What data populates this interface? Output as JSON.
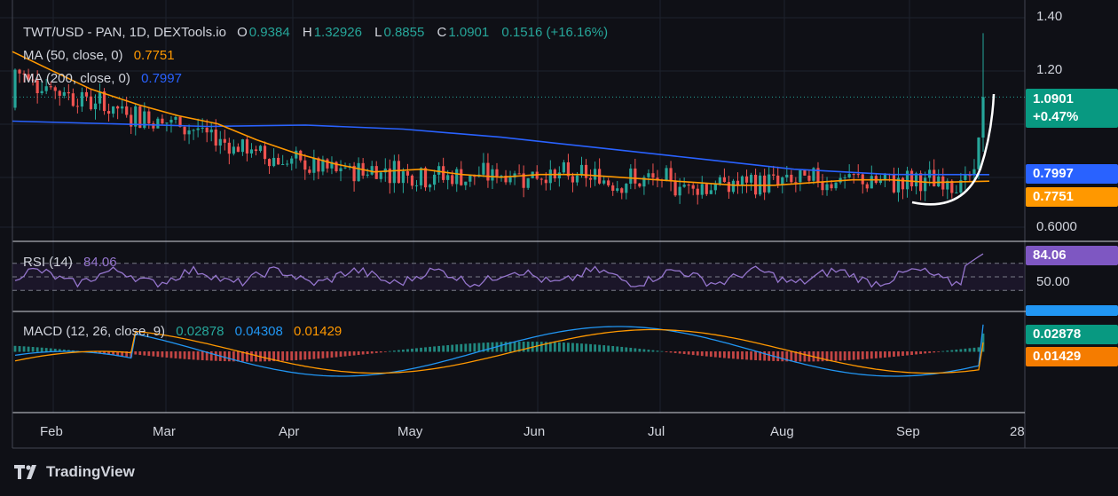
{
  "header": {
    "symbol": "TWT/USD - PAN, 1D, DEXTools.io",
    "open_label": "O",
    "open": "0.9384",
    "high_label": "H",
    "high": "1.32926",
    "low_label": "L",
    "low": "0.8855",
    "close_label": "C",
    "close": "1.0901",
    "change": "0.1516 (+16.16%)"
  },
  "ma50": {
    "label": "MA (50, close, 0)",
    "value": "0.7751",
    "color": "#ff9800"
  },
  "ma200": {
    "label": "MA (200, close, 0)",
    "value": "0.7997",
    "color": "#2962ff"
  },
  "rsi": {
    "label": "RSI (14)",
    "value": "84.06",
    "level": "50.00",
    "color": "#9575cd"
  },
  "macd": {
    "label": "MACD (12, 26, close, 9)",
    "hist": "0.02878",
    "macd": "0.04308",
    "signal": "0.01429"
  },
  "price_tag": {
    "price": "1.0901",
    "pct": "+0.47%"
  },
  "brand": "TradingView",
  "chart_data": {
    "type": "candlestick",
    "title": "TWT/USD - PAN, 1D, DEXTools.io",
    "x_tick_labels": [
      "Feb",
      "Mar",
      "Apr",
      "May",
      "Jun",
      "Jul",
      "Aug",
      "Sep",
      "28"
    ],
    "y_tick_labels": [
      "1.40",
      "1.20",
      "0.6000"
    ],
    "ylim": [
      0.55,
      1.42
    ],
    "ohlc_last": {
      "open": 0.9384,
      "high": 1.32926,
      "low": 0.8855,
      "close": 1.0901
    },
    "ma50_last": 0.7751,
    "ma200_last": 0.7997,
    "ma50_path": [
      [
        0,
        1.26
      ],
      [
        0.04,
        1.19
      ],
      [
        0.08,
        1.12
      ],
      [
        0.13,
        1.06
      ],
      [
        0.17,
        1.02
      ],
      [
        0.21,
        0.99
      ],
      [
        0.25,
        0.93
      ],
      [
        0.29,
        0.88
      ],
      [
        0.33,
        0.84
      ],
      [
        0.37,
        0.81
      ],
      [
        0.42,
        0.82
      ],
      [
        0.46,
        0.8
      ],
      [
        0.5,
        0.79
      ],
      [
        0.54,
        0.8
      ],
      [
        0.58,
        0.8
      ],
      [
        0.62,
        0.79
      ],
      [
        0.66,
        0.78
      ],
      [
        0.7,
        0.77
      ],
      [
        0.74,
        0.76
      ],
      [
        0.78,
        0.76
      ],
      [
        0.82,
        0.77
      ],
      [
        0.86,
        0.78
      ],
      [
        0.9,
        0.78
      ],
      [
        0.94,
        0.77
      ],
      [
        1,
        0.775
      ]
    ],
    "ma200_path": [
      [
        0,
        1.0
      ],
      [
        0.1,
        0.99
      ],
      [
        0.2,
        0.98
      ],
      [
        0.3,
        0.985
      ],
      [
        0.4,
        0.97
      ],
      [
        0.5,
        0.94
      ],
      [
        0.6,
        0.9
      ],
      [
        0.7,
        0.86
      ],
      [
        0.8,
        0.82
      ],
      [
        0.9,
        0.8
      ],
      [
        1,
        0.7997
      ]
    ],
    "rsi_last": 84.06,
    "rsi_bands": [
      30,
      50,
      70
    ],
    "macd_last": {
      "hist": 0.02878,
      "macd": 0.04308,
      "signal": 0.01429
    }
  }
}
